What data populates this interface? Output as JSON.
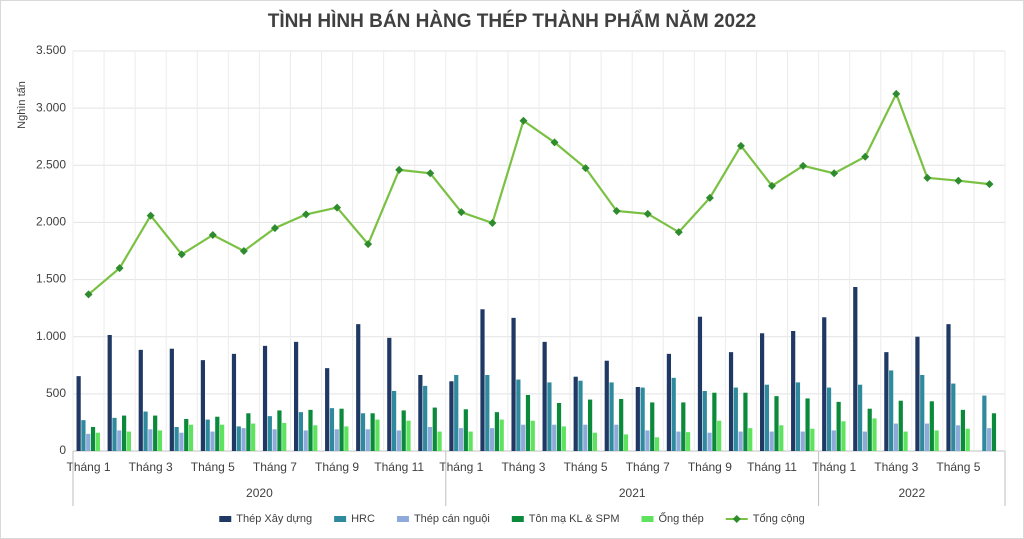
{
  "chart_data": {
    "type": "bar",
    "title": "TÌNH HÌNH BÁN HÀNG THÉP THÀNH PHẨM NĂM 2022",
    "y_label": "Nghìn tấn",
    "categories": [
      "Tháng 1",
      null,
      "Tháng 3",
      null,
      "Tháng 5",
      null,
      "Tháng 7",
      null,
      "Tháng 9",
      null,
      "Tháng 11",
      null,
      "Tháng 1",
      null,
      "Tháng 3",
      null,
      "Tháng 5",
      null,
      "Tháng 7",
      null,
      "Tháng 9",
      null,
      "Tháng 11",
      null,
      "Tháng 1",
      null,
      "Tháng 3",
      null,
      "Tháng 5",
      null
    ],
    "groups": [
      "2020",
      "2021",
      "2022"
    ],
    "ylim": [
      0,
      3500
    ],
    "yticks": [
      0,
      500,
      {
        "value": 1000,
        "label": "1.000"
      },
      {
        "value": 1500,
        "label": "1.500"
      },
      {
        "value": 2000,
        "label": "2.000"
      },
      {
        "value": 2500,
        "label": "2.500"
      },
      {
        "value": 3000,
        "label": "3.000"
      },
      {
        "value": 3500,
        "label": "3.500"
      }
    ],
    "grid": true,
    "legend": "bottom",
    "series": [
      {
        "name": "Thép Xây dựng",
        "color": "#1f3864",
        "type": "bar",
        "values": [
          655,
          1015,
          885,
          895,
          795,
          850,
          920,
          955,
          725,
          1110,
          990,
          665,
          610,
          1240,
          1165,
          955,
          650,
          790,
          560,
          850,
          1175,
          865,
          1030,
          1050,
          1170,
          1435,
          865,
          1000,
          1110,
          null
        ]
      },
      {
        "name": "HRC",
        "color": "#2e8a9c",
        "type": "bar",
        "values": [
          270,
          290,
          345,
          210,
          275,
          215,
          305,
          340,
          375,
          330,
          525,
          570,
          665,
          665,
          625,
          600,
          615,
          600,
          555,
          640,
          525,
          555,
          580,
          600,
          555,
          580,
          705,
          665,
          590,
          485
        ]
      },
      {
        "name": "Thép cán nguội",
        "color": "#8eaadb",
        "type": "bar",
        "values": [
          150,
          180,
          190,
          160,
          170,
          200,
          190,
          180,
          190,
          190,
          180,
          210,
          200,
          200,
          230,
          230,
          230,
          230,
          180,
          170,
          160,
          170,
          170,
          170,
          180,
          170,
          240,
          240,
          225,
          200
        ]
      },
      {
        "name": "Tôn mạ KL & SPM",
        "color": "#0b8a3c",
        "type": "bar",
        "values": [
          210,
          310,
          310,
          280,
          300,
          330,
          355,
          360,
          370,
          330,
          355,
          380,
          365,
          340,
          490,
          420,
          450,
          455,
          425,
          425,
          510,
          510,
          480,
          460,
          430,
          370,
          440,
          435,
          360,
          330
        ]
      },
      {
        "name": "Ống thép",
        "color": "#5fe35f",
        "type": "bar",
        "values": [
          160,
          170,
          180,
          230,
          230,
          240,
          245,
          225,
          215,
          275,
          265,
          170,
          170,
          275,
          265,
          215,
          160,
          145,
          120,
          165,
          265,
          200,
          225,
          195,
          260,
          285,
          170,
          180,
          195,
          null
        ]
      },
      {
        "name": "Tổng cộng",
        "color": "#7ac143",
        "type": "line",
        "values": [
          1370,
          1600,
          2060,
          1720,
          1890,
          1750,
          1950,
          2070,
          2130,
          1810,
          2460,
          2430,
          2090,
          1995,
          2890,
          2700,
          2475,
          2100,
          2075,
          1915,
          2215,
          2670,
          2320,
          2495,
          2430,
          2575,
          3125,
          2390,
          2365,
          2335
        ]
      }
    ]
  }
}
